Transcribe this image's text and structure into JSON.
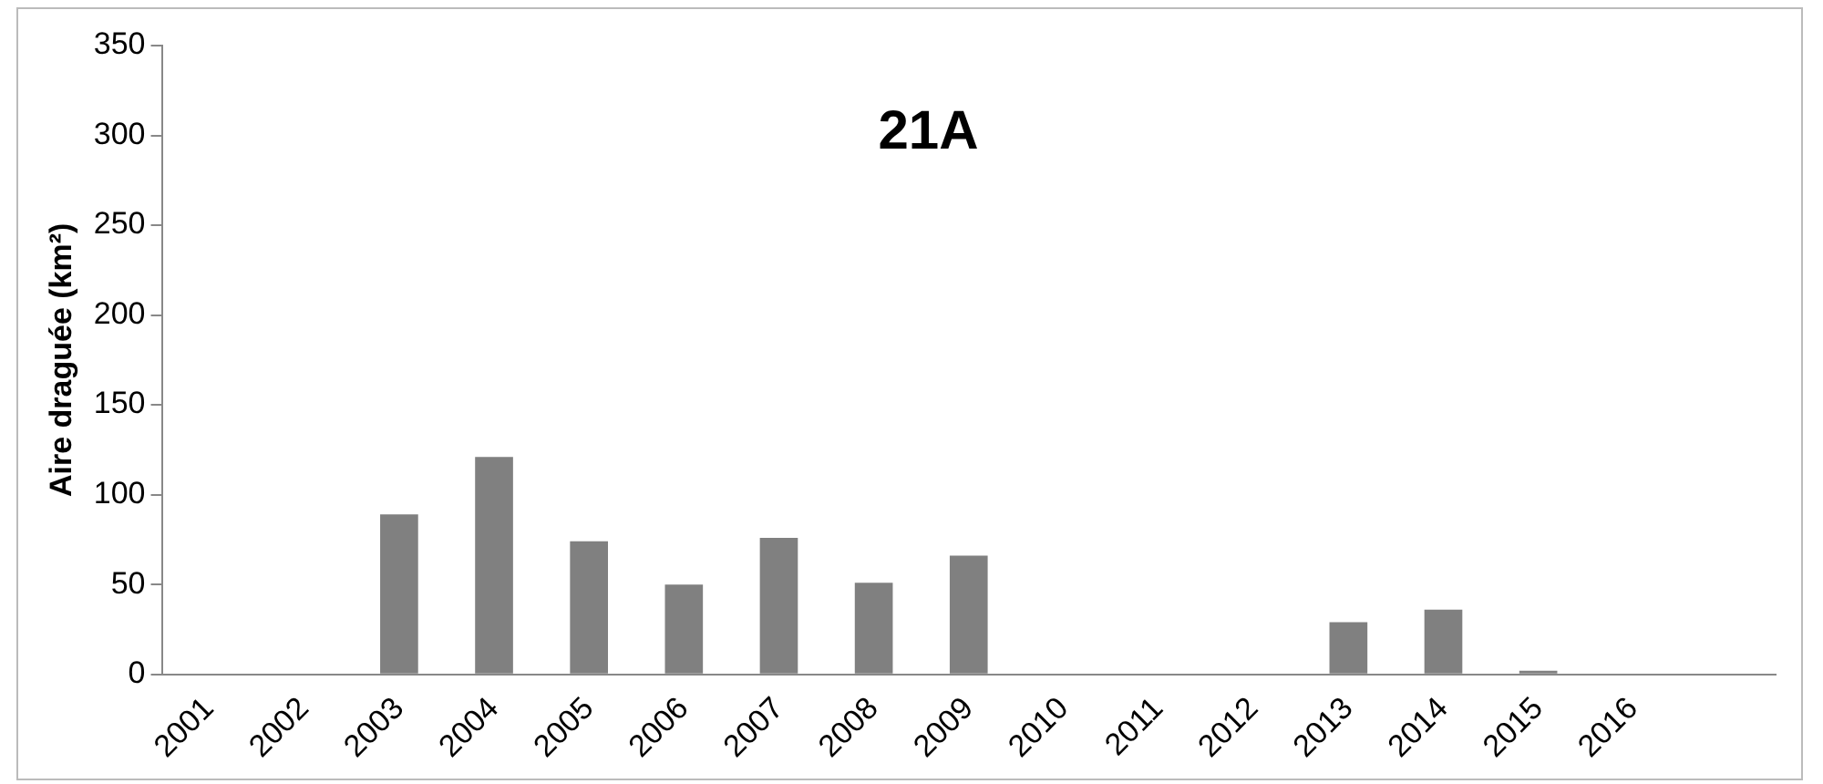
{
  "chart_data": {
    "type": "bar",
    "title": "21A",
    "ylabel": "Aire draguée (km²)",
    "categories": [
      "2001",
      "2002",
      "2003",
      "2004",
      "2005",
      "2006",
      "2007",
      "2008",
      "2009",
      "2010",
      "2011",
      "2012",
      "2013",
      "2014",
      "2015",
      "2016",
      null
    ],
    "values": [
      0,
      0,
      89,
      121,
      74,
      50,
      76,
      51,
      66,
      0,
      0,
      0,
      29,
      36,
      2,
      0,
      0
    ],
    "color": "#808080",
    "ylim": [
      0,
      350
    ],
    "yticks": [
      0,
      50,
      100,
      150,
      200,
      250,
      300,
      350
    ],
    "grid": false,
    "legend": false
  }
}
